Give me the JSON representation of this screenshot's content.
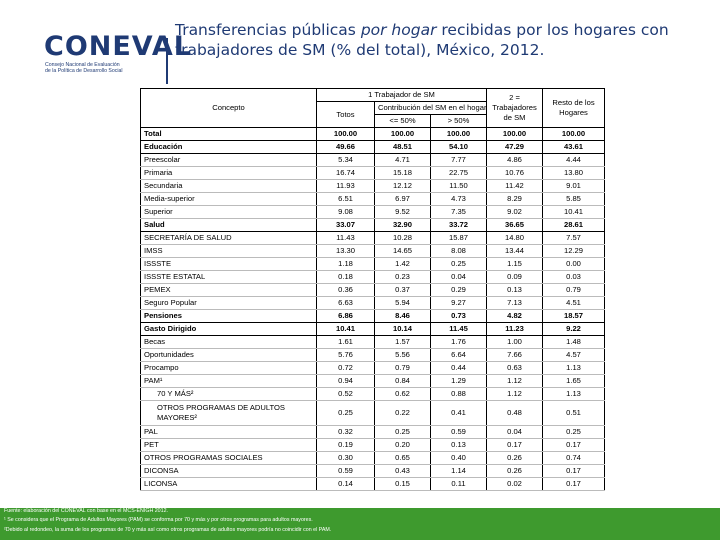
{
  "logo": {
    "word": "CONEVAL",
    "sub1": "Consejo Nacional de Evaluación",
    "sub2": "de la Política de Desarrollo Social"
  },
  "title": {
    "part1": "Transferencias públicas ",
    "part2": "por hogar",
    "part3": " recibidas por los hogares con trabajadores de SM (% del total), México, 2012."
  },
  "table": {
    "headers": {
      "concepto": "Concepto",
      "one_worker": "1 Trabajador de SM",
      "totos": "Totos",
      "contrib": "Contribución del SM en el hogar",
      "le50": "<= 50%",
      "gt50": "> 50%",
      "two_plus": "2 = Trabajadores de SM",
      "rest": "Resto de los Hogares"
    },
    "rows": [
      {
        "label": "Total",
        "v": [
          "100.00",
          "100.00",
          "100.00",
          "100.00",
          "100.00"
        ],
        "bold": true
      },
      {
        "label": "Educación",
        "v": [
          "49.66",
          "48.51",
          "54.10",
          "47.29",
          "43.61"
        ],
        "bold": true
      },
      {
        "label": "Preescolar",
        "v": [
          "5.34",
          "4.71",
          "7.77",
          "4.86",
          "4.44"
        ]
      },
      {
        "label": "Primaria",
        "v": [
          "16.74",
          "15.18",
          "22.75",
          "10.76",
          "13.80"
        ]
      },
      {
        "label": "Secundaria",
        "v": [
          "11.93",
          "12.12",
          "11.50",
          "11.42",
          "9.01"
        ]
      },
      {
        "label": "Media-superior",
        "v": [
          "6.51",
          "6.97",
          "4.73",
          "8.29",
          "5.85"
        ]
      },
      {
        "label": "Superior",
        "v": [
          "9.08",
          "9.52",
          "7.35",
          "9.02",
          "10.41"
        ]
      },
      {
        "label": "Salud",
        "v": [
          "33.07",
          "32.90",
          "33.72",
          "36.65",
          "28.61"
        ],
        "bold": true
      },
      {
        "label": "SECRETARÍA DE SALUD",
        "v": [
          "11.43",
          "10.28",
          "15.87",
          "14.80",
          "7.57"
        ]
      },
      {
        "label": "IMSS",
        "v": [
          "13.30",
          "14.65",
          "8.08",
          "13.44",
          "12.29"
        ]
      },
      {
        "label": "ISSSTE",
        "v": [
          "1.18",
          "1.42",
          "0.25",
          "1.15",
          "0.00"
        ]
      },
      {
        "label": "ISSSTE ESTATAL",
        "v": [
          "0.18",
          "0.23",
          "0.04",
          "0.09",
          "0.03"
        ]
      },
      {
        "label": "PEMEX",
        "v": [
          "0.36",
          "0.37",
          "0.29",
          "0.13",
          "0.79"
        ]
      },
      {
        "label": "Seguro Popular",
        "v": [
          "6.63",
          "5.94",
          "9.27",
          "7.13",
          "4.51"
        ]
      },
      {
        "label": "Pensiones",
        "v": [
          "6.86",
          "8.46",
          "0.73",
          "4.82",
          "18.57"
        ],
        "bold": true
      },
      {
        "label": "Gasto Dirigido",
        "v": [
          "10.41",
          "10.14",
          "11.45",
          "11.23",
          "9.22"
        ],
        "bold": true
      },
      {
        "label": "Becas",
        "v": [
          "1.61",
          "1.57",
          "1.76",
          "1.00",
          "1.48"
        ]
      },
      {
        "label": "Oportunidades",
        "v": [
          "5.76",
          "5.56",
          "6.64",
          "7.66",
          "4.57"
        ]
      },
      {
        "label": "Procampo",
        "v": [
          "0.72",
          "0.79",
          "0.44",
          "0.63",
          "1.13"
        ]
      },
      {
        "label": "PAM¹",
        "v": [
          "0.94",
          "0.84",
          "1.29",
          "1.12",
          "1.65"
        ]
      },
      {
        "label": "70 Y MÁS²",
        "v": [
          "0.52",
          "0.62",
          "0.88",
          "1.12",
          "1.13"
        ],
        "indent": true
      },
      {
        "label": "OTROS PROGRAMAS DE ADULTOS MAYORES²",
        "v": [
          "0.25",
          "0.22",
          "0.41",
          "0.48",
          "0.51"
        ],
        "indent": true,
        "tall": true
      },
      {
        "label": "PAL",
        "v": [
          "0.32",
          "0.25",
          "0.59",
          "0.04",
          "0.25"
        ]
      },
      {
        "label": "PET",
        "v": [
          "0.19",
          "0.20",
          "0.13",
          "0.17",
          "0.17"
        ]
      },
      {
        "label": "OTROS PROGRAMAS SOCIALES",
        "v": [
          "0.30",
          "0.65",
          "0.40",
          "0.26",
          "0.74"
        ]
      },
      {
        "label": "DICONSA",
        "v": [
          "0.59",
          "0.43",
          "1.14",
          "0.26",
          "0.17"
        ]
      },
      {
        "label": "LICONSA",
        "v": [
          "0.14",
          "0.15",
          "0.11",
          "0.02",
          "0.17"
        ]
      }
    ]
  },
  "footnotes": {
    "f1": "Fuente: elaboración del CONEVAL con base en el MCS-ENIGH 2012.",
    "f2": "¹ Se considera que el Programa de Adultos Mayores (PAM) se conforma por 70 y más y por otros programas para adultos mayores.",
    "f3": "²Debido al redondeo, la suma de los programas de 70 y más así como otros programas de adultos mayores podría no coincidir con el PAM."
  },
  "colors": {
    "brand_blue": "#1f3a74",
    "footer_green": "#3e9a2e"
  }
}
